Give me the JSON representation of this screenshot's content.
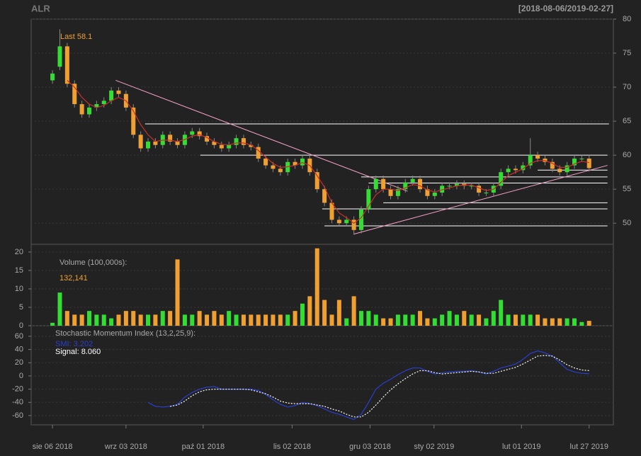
{
  "chart_data": {
    "type": "candlestick",
    "title": "ALR",
    "date_range": "[2018-08-06/2019-02-27]",
    "last_label": "Last 58.1",
    "up_color": "#33dd33",
    "down_color": "#f0a030",
    "xlim": [
      -2.9,
      76.3
    ],
    "xticks": [
      {
        "value": 0,
        "label": "sie 06 2018"
      },
      {
        "value": 10,
        "label": "wrz 03 2018"
      },
      {
        "value": 20.5,
        "label": "paź 01 2018"
      },
      {
        "value": 32.6,
        "label": "lis 02 2018"
      },
      {
        "value": 43.2,
        "label": "gru 03 2018"
      },
      {
        "value": 51.9,
        "label": "sty 02 2019"
      },
      {
        "value": 63.8,
        "label": "lut 01 2019"
      },
      {
        "value": 73,
        "label": "lut 27 2019"
      }
    ],
    "ylim": [
      46.9,
      80
    ],
    "yticks": [
      50,
      55,
      60,
      65,
      70,
      75,
      80
    ],
    "open": [
      71,
      73,
      76,
      70.5,
      67.5,
      66,
      67,
      67.5,
      68,
      69.5,
      69,
      67,
      63,
      61,
      62,
      61.5,
      63,
      62,
      61.5,
      63,
      63.5,
      62.8,
      62,
      61.5,
      61,
      61.5,
      62.5,
      61.5,
      61.2,
      59.5,
      58.5,
      58,
      57.5,
      59,
      58.5,
      59.5,
      57.5,
      55,
      53,
      50.5,
      50,
      50.5,
      49,
      52,
      55,
      56.5,
      55,
      54,
      55,
      56,
      56.5,
      55,
      54,
      54.5,
      55.5,
      55.5,
      55.8,
      55.5,
      55.5,
      54.5,
      54.5,
      55.5,
      57.5,
      58,
      57.8,
      58.5,
      60,
      59.5,
      59,
      58,
      57.5,
      58.5,
      59.5,
      59.5
    ],
    "high": [
      72.5,
      78.5,
      76.5,
      71,
      68,
      67.5,
      68,
      68.5,
      70,
      70,
      69.5,
      67.5,
      63.5,
      62.5,
      62.5,
      63.5,
      63.5,
      62.5,
      63.5,
      64,
      64,
      63.3,
      62.5,
      62,
      62,
      63,
      63,
      62,
      61.7,
      60,
      59,
      58.5,
      59.5,
      59.5,
      60,
      60,
      58,
      55.5,
      53.5,
      51,
      51,
      51,
      52.5,
      55.5,
      57,
      57,
      55.5,
      55.5,
      56.5,
      57,
      57,
      55.5,
      55,
      56,
      56,
      56.3,
      56.3,
      56,
      56,
      55,
      56,
      58,
      58.5,
      58.5,
      59,
      62.5,
      60.5,
      60,
      59.5,
      58.5,
      59,
      60,
      60,
      60
    ],
    "low": [
      70.5,
      72.5,
      70,
      67,
      65.5,
      65.5,
      66.5,
      67,
      67.5,
      68.5,
      66.5,
      62.5,
      60.5,
      60.5,
      61,
      61,
      61.5,
      61,
      61,
      62.5,
      62.3,
      61.5,
      61,
      60.5,
      60.5,
      61,
      61,
      60.7,
      59,
      58,
      57.5,
      57,
      57,
      58,
      58,
      57,
      54.5,
      52.5,
      50,
      49.5,
      49.5,
      48.3,
      48.5,
      51.5,
      54.5,
      54.5,
      53.5,
      53.5,
      54.5,
      55.5,
      54.5,
      53.5,
      53.5,
      54,
      55,
      55,
      55,
      55,
      54,
      54,
      54,
      55,
      57,
      57.3,
      57.3,
      58,
      59,
      58.5,
      57.5,
      57,
      57,
      58,
      59,
      57.6
    ],
    "close": [
      72,
      76,
      70.5,
      67.5,
      66,
      67,
      67.5,
      68,
      69.5,
      69,
      67,
      63,
      61,
      62,
      61.5,
      63,
      62,
      61.5,
      63,
      63.5,
      62.8,
      62,
      61.5,
      61,
      61.5,
      62.5,
      61.5,
      61.2,
      59.5,
      58.5,
      58,
      57.5,
      59,
      58.5,
      59.5,
      57.5,
      55,
      53,
      50.5,
      50,
      50.5,
      49,
      52,
      55,
      56.5,
      55,
      54,
      55,
      56,
      56.5,
      55,
      54,
      54.5,
      55.5,
      55.5,
      55.8,
      55.5,
      55.5,
      54.5,
      54.5,
      55.5,
      57.5,
      58,
      57.8,
      58.5,
      60,
      59.5,
      59,
      58,
      57.5,
      58.5,
      59.5,
      59.5,
      58.1
    ],
    "moving_average": {
      "color": "#c8302a",
      "values": [
        null,
        null,
        71,
        70,
        68.5,
        67.5,
        67,
        67.3,
        68,
        68.5,
        68,
        66.5,
        64.5,
        63,
        62,
        62.2,
        62.2,
        62,
        62.3,
        62.8,
        63,
        62.6,
        62,
        61.6,
        61.5,
        61.8,
        61.8,
        61.5,
        60.7,
        59.7,
        58.8,
        58.2,
        58.3,
        58.5,
        58.9,
        58.5,
        57,
        55.3,
        53,
        51.5,
        50.8,
        50,
        50.8,
        52.5,
        54.2,
        55,
        55,
        54.8,
        55.2,
        55.7,
        55.5,
        54.9,
        54.6,
        54.9,
        55.2,
        55.5,
        55.6,
        55.6,
        55.2,
        54.8,
        55,
        56,
        57,
        57.5,
        58,
        58.8,
        59.2,
        59.2,
        58.8,
        58.2,
        58.2,
        58.7,
        59.1,
        58.9
      ]
    },
    "levels": {
      "color": "#ffffff",
      "items": [
        {
          "y": 64.6,
          "x": [
            12.6,
            75.7
          ]
        },
        {
          "y": 60,
          "x": [
            20.1,
            75.5
          ]
        },
        {
          "y": 57.8,
          "x": [
            66,
            75.5
          ]
        },
        {
          "y": 56.8,
          "x": [
            42,
            75.5
          ]
        },
        {
          "y": 55.9,
          "x": [
            43,
            75.5
          ]
        },
        {
          "y": 53,
          "x": [
            45,
            75.5
          ]
        },
        {
          "y": 52.1,
          "x": [
            36.7,
            75.5
          ]
        },
        {
          "y": 49.6,
          "x": [
            37,
            75.5
          ]
        }
      ]
    },
    "trendlines": {
      "color": "#f4a0c8",
      "items": [
        {
          "x": [
            8.6,
            48.3
          ],
          "y": [
            71,
            54.7
          ]
        },
        {
          "x": [
            41,
            75.5
          ],
          "y": [
            48.4,
            58.5
          ]
        }
      ]
    },
    "volume": {
      "label": "Volume (100,000s):",
      "last_label": "132,141",
      "ylim": [
        0,
        22.1
      ],
      "yticks": [
        0,
        5,
        10,
        15,
        20
      ],
      "values": [
        0.8,
        9,
        4,
        3,
        3,
        4,
        3,
        3,
        2,
        3,
        4,
        4,
        3,
        3,
        3,
        4,
        4,
        18,
        3,
        3,
        4,
        3,
        4,
        3,
        4,
        3,
        3,
        3,
        3,
        3,
        3,
        3,
        3,
        4,
        6,
        8,
        21,
        7,
        3,
        7,
        2,
        8,
        4,
        4,
        3,
        2,
        2,
        3,
        3,
        3,
        4,
        2,
        2,
        3,
        4,
        3,
        4,
        3,
        3,
        2,
        4,
        7,
        3,
        3,
        3,
        3,
        3,
        2,
        2,
        2,
        2,
        2,
        1,
        1.32141
      ]
    },
    "smi": {
      "label": "Stochastic Momentum Index (13,2,25,9):",
      "smi_label": "SMI: 3.202",
      "signal_label": "Signal: 8.060",
      "ylim": [
        -74,
        76
      ],
      "yticks": [
        -60,
        -40,
        -20,
        0,
        20,
        40,
        60
      ],
      "smi": {
        "color": "#2a3fd0",
        "values": [
          null,
          null,
          null,
          null,
          null,
          null,
          null,
          null,
          null,
          null,
          null,
          null,
          null,
          -40,
          -46,
          -47,
          -46,
          -43,
          -32,
          -25,
          -20,
          -17,
          -16,
          -20,
          -20,
          -20,
          -20,
          -20,
          -22,
          -28,
          -36,
          -43,
          -47,
          -45,
          -40,
          -42,
          -45,
          -50,
          -55,
          -58,
          -62,
          -66,
          -58,
          -40,
          -20,
          -11,
          -5,
          2,
          8,
          12,
          12,
          7,
          3,
          5,
          6,
          7,
          7,
          8,
          6,
          3,
          7,
          12,
          15,
          18,
          25,
          34,
          38,
          35,
          30,
          20,
          10,
          6,
          4,
          3.202
        ]
      },
      "signal": {
        "color": "#ffffff",
        "values": [
          null,
          null,
          null,
          null,
          null,
          null,
          null,
          null,
          null,
          null,
          null,
          null,
          null,
          null,
          null,
          null,
          -46,
          -44,
          -38,
          -30,
          -24,
          -21,
          -20,
          -20,
          -20,
          -20,
          -20,
          -21,
          -24,
          -27,
          -32,
          -38,
          -41,
          -42,
          -42,
          -42,
          -44,
          -46,
          -50,
          -53,
          -58,
          -62,
          -62,
          -55,
          -44,
          -32,
          -21,
          -12,
          -4,
          3,
          8,
          8,
          5,
          3,
          4,
          5,
          6,
          7,
          6,
          4,
          4,
          7,
          10,
          13,
          18,
          24,
          30,
          31,
          30,
          24,
          17,
          12,
          9,
          8.06
        ]
      }
    }
  }
}
